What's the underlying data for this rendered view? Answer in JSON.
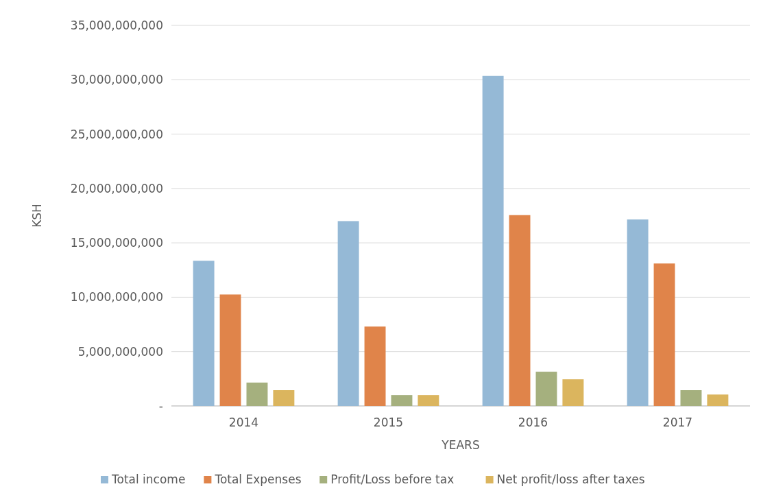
{
  "chart_data": {
    "type": "bar",
    "xlabel": "YEARS",
    "ylabel": "KSH",
    "categories": [
      "2014",
      "2015",
      "2016",
      "2017"
    ],
    "series": [
      {
        "name": "Total income",
        "color": "#95b9d6",
        "values": [
          13350000000,
          17000000000,
          30350000000,
          17150000000
        ]
      },
      {
        "name": "Total Expenses",
        "color": "#e0844a",
        "values": [
          10250000000,
          7300000000,
          17550000000,
          13100000000
        ]
      },
      {
        "name": "Profit/Loss before tax",
        "color": "#a5b07e",
        "values": [
          2150000000,
          1000000000,
          3150000000,
          1450000000
        ]
      },
      {
        "name": "Net profit/loss after taxes",
        "color": "#dbb55e",
        "values": [
          1450000000,
          1000000000,
          2450000000,
          1050000000
        ]
      }
    ],
    "ylim": [
      0,
      35000000000
    ],
    "yticks": [
      {
        "value": 0,
        "label": "-"
      },
      {
        "value": 5000000000,
        "label": "5,000,000,000"
      },
      {
        "value": 10000000000,
        "label": "10,000,000,000"
      },
      {
        "value": 15000000000,
        "label": "15,000,000,000"
      },
      {
        "value": 20000000000,
        "label": "20,000,000,000"
      },
      {
        "value": 25000000000,
        "label": "25,000,000,000"
      },
      {
        "value": 30000000000,
        "label": "30,000,000,000"
      },
      {
        "value": 35000000000,
        "label": "35,000,000,000"
      }
    ],
    "grid": "y",
    "legend": "bottom"
  }
}
